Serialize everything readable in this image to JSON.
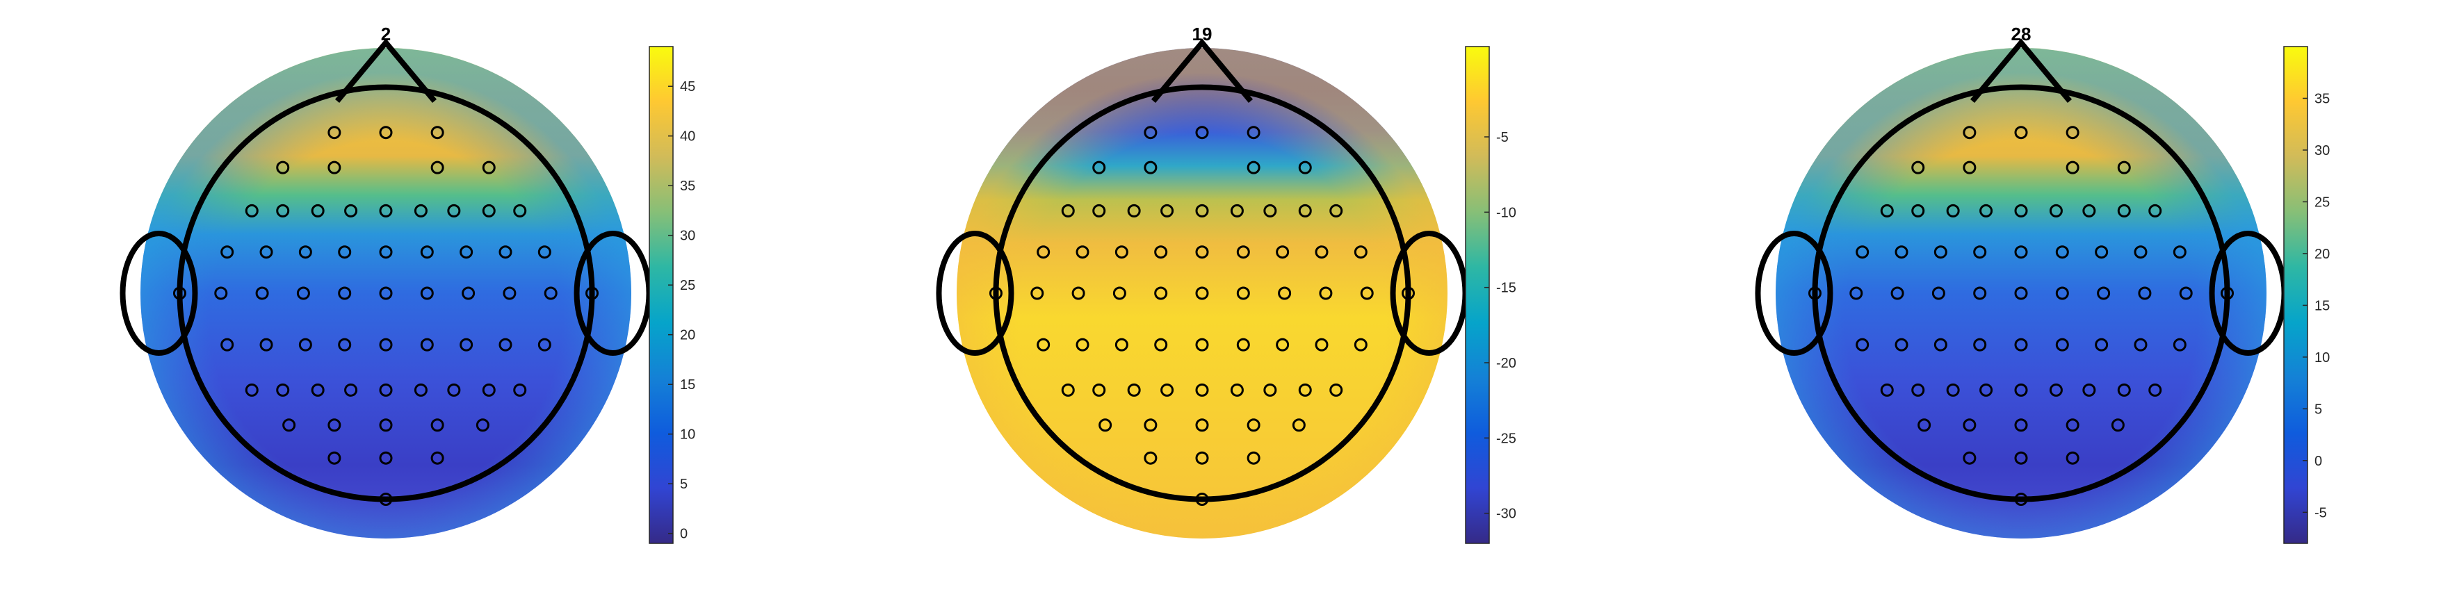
{
  "chart_data": [
    {
      "type": "heatmap",
      "subtype": "eeg-topoplot",
      "title": "2",
      "colormap": "parula",
      "colorbar": {
        "clim": [
          -1,
          49
        ],
        "ticks": [
          0,
          5,
          10,
          15,
          20,
          25,
          30,
          35,
          40,
          45
        ]
      },
      "pattern": "high-frontal"
    },
    {
      "type": "heatmap",
      "subtype": "eeg-topoplot",
      "title": "19",
      "colormap": "parula",
      "colorbar": {
        "clim": [
          -32,
          1
        ],
        "ticks": [
          -30,
          -25,
          -20,
          -15,
          -10,
          -5
        ]
      },
      "pattern": "low-frontal"
    },
    {
      "type": "heatmap",
      "subtype": "eeg-topoplot",
      "title": "28",
      "colormap": "parula",
      "colorbar": {
        "clim": [
          -8,
          40
        ],
        "ticks": [
          -5,
          0,
          5,
          10,
          15,
          20,
          25,
          30,
          35
        ]
      },
      "pattern": "high-frontal"
    }
  ],
  "colors": {
    "head_outline": "#000000",
    "electrode": "#000000",
    "parula": [
      "#352a87",
      "#3145d3",
      "#0f5cdd",
      "#1481d6",
      "#06a4ca",
      "#2eb7a4",
      "#87bf77",
      "#d1bb59",
      "#fec832",
      "#f9fb0e"
    ]
  }
}
